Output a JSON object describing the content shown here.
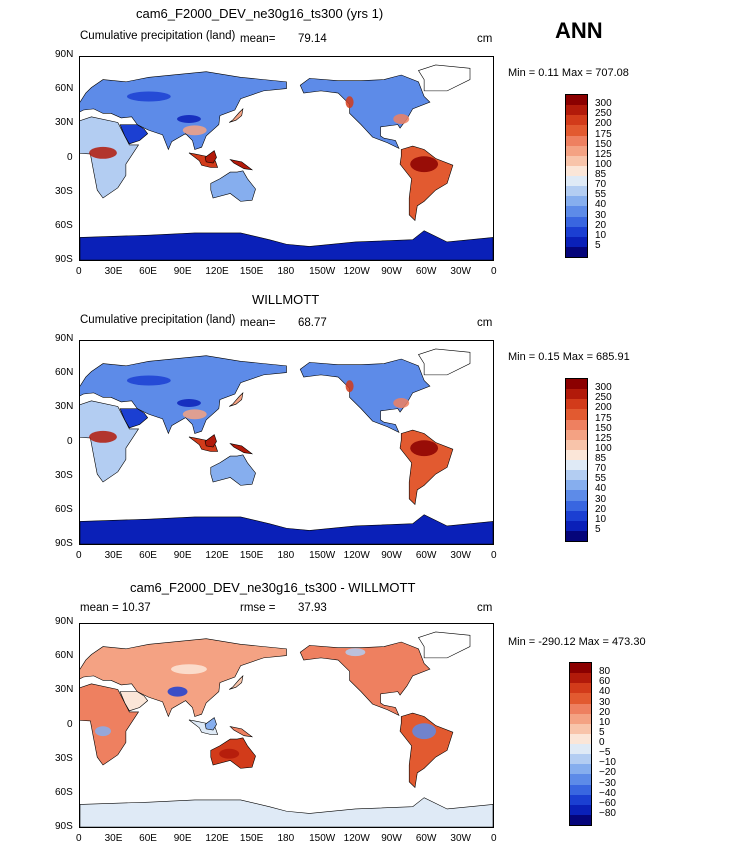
{
  "season": "ANN",
  "lon_labels": [
    "0",
    "30E",
    "60E",
    "90E",
    "120E",
    "150E",
    "180",
    "150W",
    "120W",
    "90W",
    "60W",
    "30W",
    "0"
  ],
  "lat_labels": [
    "90N",
    "60N",
    "30N",
    "0",
    "30S",
    "60S",
    "90S"
  ],
  "panels": [
    {
      "title": "cam6_F2000_DEV_ne30g16_ts300 (yrs 1)",
      "left_label": "Cumulative precipitation (land)",
      "mean_label": "mean=",
      "mean_value": "79.14",
      "units": "cm",
      "minmax": "Min =   0.11 Max = 707.08",
      "type": "abs"
    },
    {
      "title": "WILLMOTT",
      "left_label": "Cumulative precipitation (land)",
      "mean_label": "mean=",
      "mean_value": "68.77",
      "units": "cm",
      "minmax": "Min =   0.15 Max = 685.91",
      "type": "abs"
    },
    {
      "title": "cam6_F2000_DEV_ne30g16_ts300 - WILLMOTT",
      "left_label": "mean =   10.37",
      "mean_label": "rmse =",
      "mean_value": "37.93",
      "units": "cm",
      "minmax": "Min = -290.12 Max = 473.30",
      "type": "diff"
    }
  ],
  "chart_data": [
    {
      "type": "heatmap",
      "title": "cam6_F2000_DEV_ne30g16_ts300 (yrs 1)",
      "variable": "Cumulative precipitation (land)",
      "units": "cm",
      "mean": 79.14,
      "min": 0.11,
      "max": 707.08,
      "colorbar_levels": [
        5,
        10,
        20,
        30,
        40,
        55,
        70,
        85,
        100,
        125,
        150,
        175,
        200,
        250,
        300
      ],
      "xlim": [
        0,
        360
      ],
      "ylim": [
        -90,
        90
      ]
    },
    {
      "type": "heatmap",
      "title": "WILLMOTT",
      "variable": "Cumulative precipitation (land)",
      "units": "cm",
      "mean": 68.77,
      "min": 0.15,
      "max": 685.91,
      "colorbar_levels": [
        5,
        10,
        20,
        30,
        40,
        55,
        70,
        85,
        100,
        125,
        150,
        175,
        200,
        250,
        300
      ],
      "xlim": [
        0,
        360
      ],
      "ylim": [
        -90,
        90
      ]
    },
    {
      "type": "heatmap",
      "title": "cam6_F2000_DEV_ne30g16_ts300 - WILLMOTT",
      "units": "cm",
      "mean": 10.37,
      "rmse": 37.93,
      "min": -290.12,
      "max": 473.3,
      "colorbar_levels": [
        -80,
        -60,
        -40,
        -30,
        -20,
        -10,
        -5,
        0,
        5,
        10,
        20,
        30,
        40,
        60,
        80
      ],
      "xlim": [
        0,
        360
      ],
      "ylim": [
        -90,
        90
      ]
    }
  ],
  "abs_labels": [
    "300",
    "250",
    "200",
    "175",
    "150",
    "125",
    "100",
    "85",
    "70",
    "55",
    "40",
    "30",
    "20",
    "10",
    "5"
  ],
  "diff_labels": [
    "80",
    "60",
    "40",
    "30",
    "20",
    "10",
    "5",
    "0",
    "−5",
    "−10",
    "−20",
    "−30",
    "−40",
    "−60",
    "−80"
  ],
  "abs_colors": [
    "#8b0000",
    "#b21a0a",
    "#d23b1a",
    "#e25a30",
    "#ee8060",
    "#f4a283",
    "#f8c4aa",
    "#fbe6d8",
    "#dfeaf6",
    "#b3cdf2",
    "#86aeee",
    "#5d8be8",
    "#3966e0",
    "#1b3fd2",
    "#0a20b8",
    "#05057a"
  ],
  "diff_colors": [
    "#8b0000",
    "#b21a0a",
    "#d23b1a",
    "#e25a30",
    "#ee8060",
    "#f4a283",
    "#f8c4aa",
    "#fbe6d8",
    "#dfeaf6",
    "#b3cdf2",
    "#86aeee",
    "#5d8be8",
    "#3966e0",
    "#1b3fd2",
    "#0a20b8",
    "#05057a"
  ]
}
